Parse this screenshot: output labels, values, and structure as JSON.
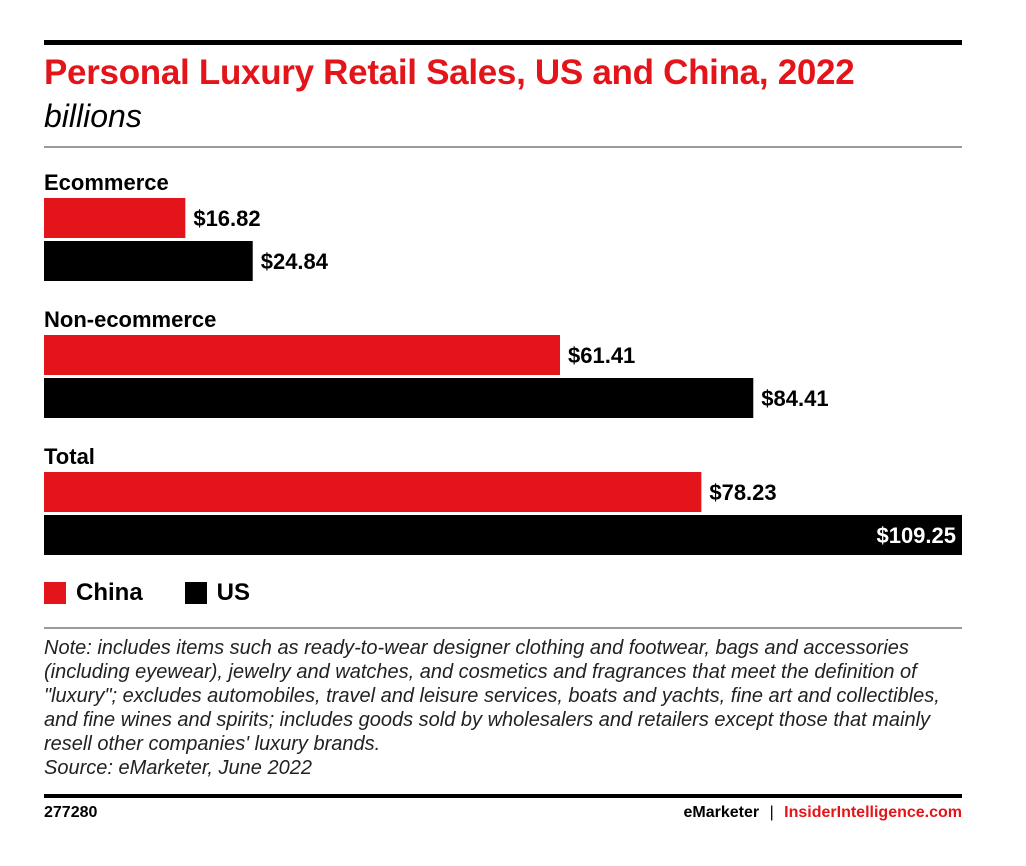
{
  "header": {
    "title": "Personal Luxury Retail Sales, US and China, 2022",
    "subtitle": "billions"
  },
  "colors": {
    "China": "#e3151a",
    "US": "#000000"
  },
  "chart_data": {
    "type": "bar",
    "orientation": "horizontal",
    "title": "Personal Luxury Retail Sales, US and China, 2022",
    "subtitle": "billions",
    "categories": [
      "Ecommerce",
      "Non-ecommerce",
      "Total"
    ],
    "series": [
      {
        "name": "China",
        "values": [
          16.82,
          61.41,
          78.23
        ],
        "labels": [
          "$16.82",
          "$61.41",
          "$78.23"
        ],
        "color": "#e3151a"
      },
      {
        "name": "US",
        "values": [
          24.84,
          84.41,
          109.25
        ],
        "labels": [
          "$24.84",
          "$84.41",
          "$109.25"
        ],
        "color": "#000000"
      }
    ],
    "xlim": [
      0,
      109.25
    ],
    "grid": false,
    "legend": "bottom-left"
  },
  "legend": [
    {
      "label": "China",
      "color": "#e3151a"
    },
    {
      "label": "US",
      "color": "#000000"
    }
  ],
  "note": "Note: includes items such as ready-to-wear designer clothing and footwear, bags and accessories (including eyewear), jewelry and watches, and cosmetics and fragrances that meet the definition of \"luxury\"; excludes automobiles, travel and leisure services, boats and yachts, fine art and collectibles, and fine wines and spirits; includes goods sold by wholesalers and retailers except those that mainly resell other companies' luxury brands.",
  "source": "Source: eMarketer, June 2022",
  "footer": {
    "chart_id": "277280",
    "brand": "eMarketer",
    "separator": "|",
    "site": "InsiderIntelligence.com"
  }
}
